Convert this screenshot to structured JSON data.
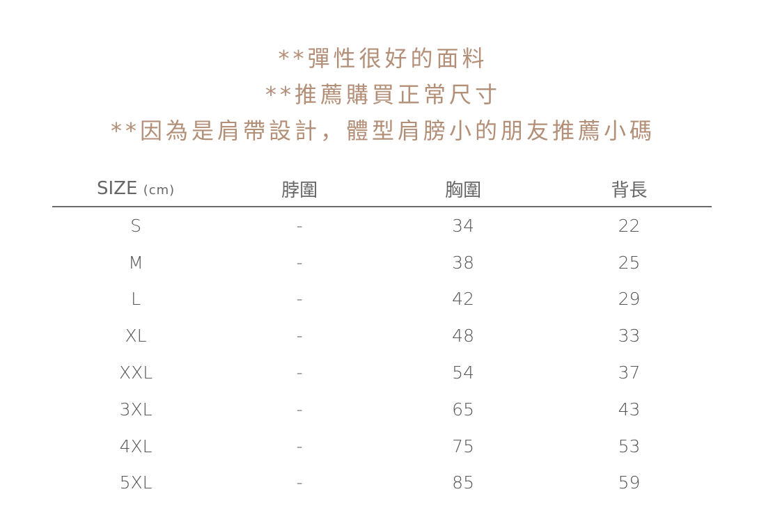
{
  "notes": [
    "**彈性很好的面料",
    "**推薦購買正常尺寸",
    "**因為是肩帶設計，體型肩膀小的朋友推薦小碼"
  ],
  "table": {
    "headers": {
      "size": "SIZE",
      "unit": "(cm)",
      "neck": "脖圍",
      "chest": "胸圍",
      "back": "背長"
    },
    "rows": [
      [
        "S",
        "-",
        "34",
        "22"
      ],
      [
        "M",
        "-",
        "38",
        "25"
      ],
      [
        "L",
        "-",
        "42",
        "29"
      ],
      [
        "XL",
        "-",
        "48",
        "33"
      ],
      [
        "XXL",
        "-",
        "54",
        "37"
      ],
      [
        "3XL",
        "-",
        "65",
        "43"
      ],
      [
        "4XL",
        "-",
        "75",
        "53"
      ],
      [
        "5XL",
        "-",
        "85",
        "59"
      ]
    ]
  },
  "colors": {
    "accent": "#b38f78",
    "text": "#555555",
    "rule": "#6b6b6b"
  }
}
